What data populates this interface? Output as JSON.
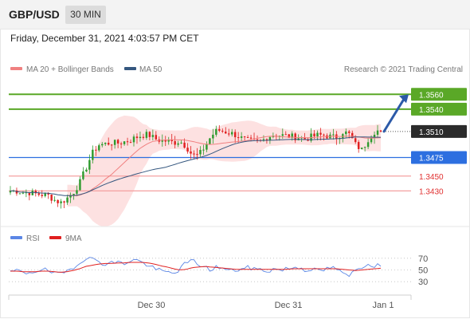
{
  "header": {
    "symbol": "GBP/USD",
    "timeframe": "30 MIN"
  },
  "timestamp": "Friday, December 31, 2021 4:03:57 PM CET",
  "colors": {
    "up_candle": "#2e9b2e",
    "down_candle": "#e02020",
    "resistance": "#5aa827",
    "pivot": "#2d6fe0",
    "support": "#f4a0a0",
    "support_text": "#e03030",
    "bollinger_fill": "#fddcdc",
    "ma20": "#f08080",
    "ma50": "#35577f",
    "rsi": "#5b86e5",
    "rsi_ma": "#e02020",
    "last_price_bg": "#2b2b2b",
    "arrow": "#2c5aa8"
  },
  "chart_data": [
    {
      "type": "candlestick",
      "instrument": "GBP/USD",
      "timeframe": "30 MIN",
      "legend": [
        {
          "label": "MA 20 + Bollinger Bands",
          "color": "#f08080"
        },
        {
          "label": "MA 50",
          "color": "#35577f"
        }
      ],
      "source": "Research © 2021 Trading Central",
      "x_tick_labels": [
        "Dec 30",
        "Dec 31",
        "Jan 1"
      ],
      "ylim": [
        1.3395,
        1.3585
      ],
      "levels": [
        {
          "value": 1.356,
          "label": "1.3560",
          "kind": "resistance"
        },
        {
          "value": 1.354,
          "label": "1.3540",
          "kind": "resistance"
        },
        {
          "value": 1.351,
          "label": "1.3510",
          "kind": "last_price"
        },
        {
          "value": 1.3475,
          "label": "1.3475",
          "kind": "pivot"
        },
        {
          "value": 1.345,
          "label": "1.3450",
          "kind": "support"
        },
        {
          "value": 1.343,
          "label": "1.3430",
          "kind": "support"
        }
      ],
      "anchors": [
        1.343,
        1.343,
        1.3428,
        1.3428,
        1.3426,
        1.3425,
        1.3424,
        1.3418,
        1.3414,
        1.342,
        1.3428,
        1.344,
        1.346,
        1.348,
        1.3492,
        1.3493,
        1.3495,
        1.3494,
        1.3496,
        1.3498,
        1.3502,
        1.3505,
        1.3506,
        1.35,
        1.3498,
        1.3497,
        1.3495,
        1.3497,
        1.349,
        1.3478,
        1.3478,
        1.349,
        1.3504,
        1.3512,
        1.351,
        1.3508,
        1.3505,
        1.35,
        1.3497,
        1.3496,
        1.3497,
        1.3503,
        1.3506,
        1.3505,
        1.3504,
        1.3503,
        1.3502,
        1.35,
        1.3503,
        1.3505,
        1.3505,
        1.3503,
        1.3502,
        1.351,
        1.3506,
        1.3492,
        1.3485,
        1.35,
        1.351,
        1.3512
      ],
      "current_price": 1.351,
      "forecast_arrow": {
        "from": 1.351,
        "to": 1.356
      }
    },
    {
      "type": "line",
      "title": "RSI",
      "legend": [
        {
          "label": "RSI",
          "color": "#5b86e5"
        },
        {
          "label": "9MA",
          "color": "#e02020"
        }
      ],
      "y_tick_labels": [
        "70",
        "50",
        "30"
      ],
      "ylim": [
        18,
        82
      ],
      "rsi_anchors": [
        45,
        50,
        44,
        46,
        48,
        52,
        48,
        44,
        42,
        48,
        55,
        62,
        72,
        68,
        66,
        60,
        62,
        64,
        60,
        66,
        68,
        62,
        58,
        52,
        48,
        46,
        44,
        52,
        62,
        66,
        60,
        54,
        50,
        56,
        52,
        48,
        50,
        52,
        54,
        52,
        50,
        48,
        52,
        50,
        52,
        54,
        55,
        50,
        52,
        48,
        50,
        54,
        52,
        42,
        40,
        50,
        56,
        60,
        58,
        58
      ],
      "ma_anchors": [
        48,
        48,
        47,
        47,
        47,
        48,
        48,
        47,
        46,
        47,
        49,
        52,
        56,
        58,
        60,
        61,
        61,
        62,
        62,
        63,
        63,
        63,
        62,
        60,
        57,
        55,
        52,
        50,
        51,
        54,
        55,
        56,
        55,
        54,
        53,
        52,
        51,
        51,
        51,
        51,
        51,
        51,
        51,
        51,
        51,
        52,
        52,
        52,
        52,
        52,
        52,
        52,
        52,
        51,
        50,
        49,
        50,
        51,
        52,
        53
      ]
    }
  ]
}
